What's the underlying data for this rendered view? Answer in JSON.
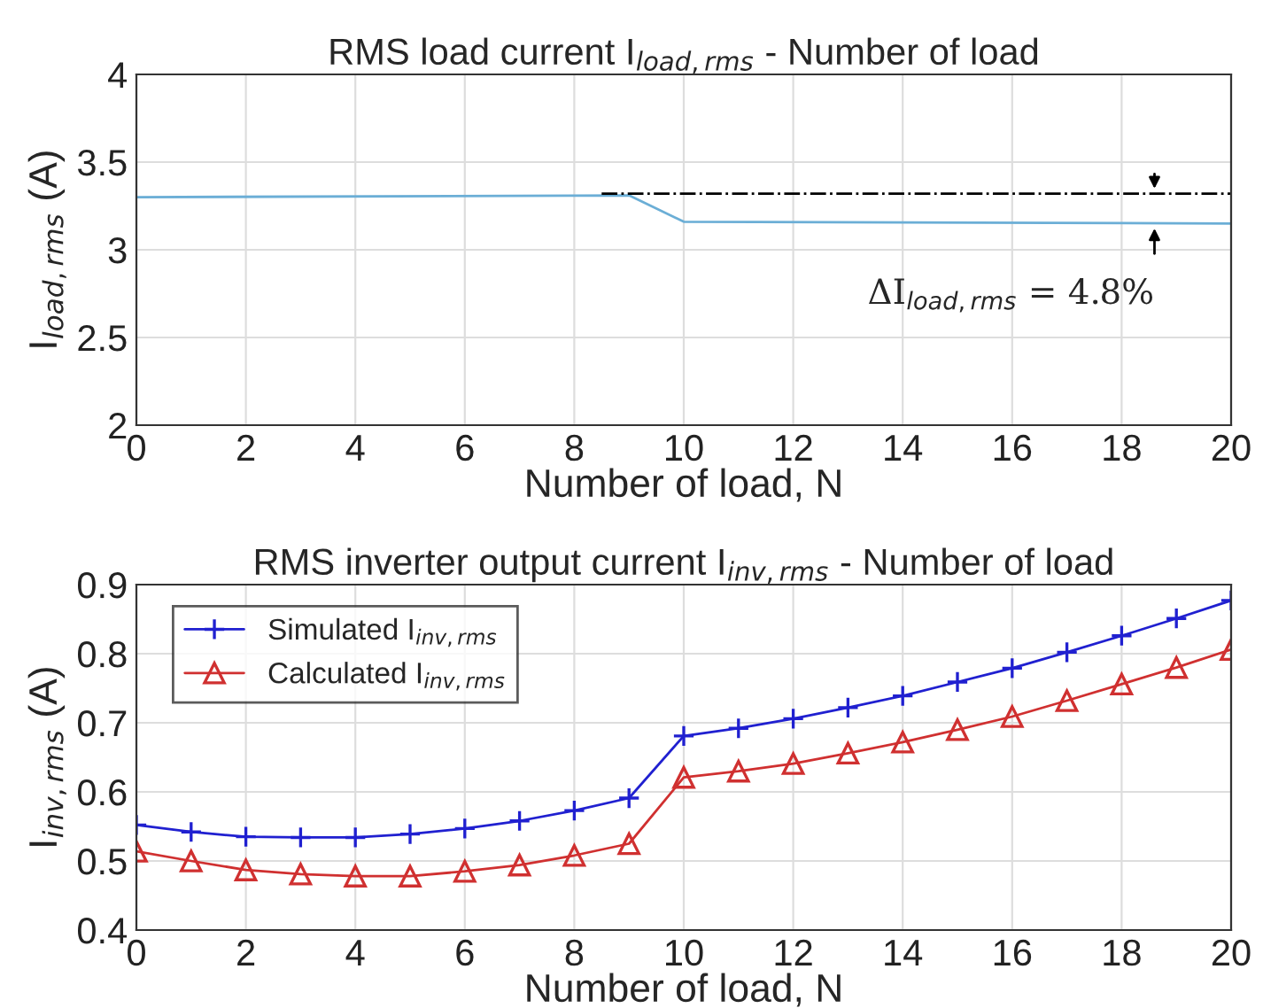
{
  "chart_data": [
    {
      "type": "line",
      "title": "RMS load current I$_{load,rms}$ - Number of load",
      "xlabel": "Number of load, N",
      "ylabel": "I$_{load,rms}$ (A)",
      "series": [
        {
          "color": "#6baed6",
          "x": [
            0,
            9,
            10,
            20
          ],
          "values": [
            3.3,
            3.31,
            3.16,
            3.15
          ],
          "line_style": "solid"
        },
        {
          "color": "#000000",
          "x": [
            8.5,
            20
          ],
          "values": [
            3.32,
            3.32
          ],
          "line_style": "dashed"
        }
      ],
      "annotations": [
        "ΔI$_{load,rms}$ = 4.8%"
      ],
      "xlim": [
        0,
        20
      ],
      "xticks": [
        0,
        2,
        4,
        6,
        8,
        10,
        12,
        14,
        16,
        18,
        20
      ],
      "ylim": [
        2,
        4
      ],
      "yticks": [
        2,
        2.5,
        3,
        3.5,
        4
      ],
      "grid": true,
      "legend": false,
      "marker": "none"
    },
    {
      "type": "line",
      "title": "RMS inverter output current I$_{inv,rms}$ - Number of load",
      "xlabel": "Number of load, N",
      "ylabel": "I$_{inv,rms}$ (A)",
      "x": [
        0,
        1,
        2,
        3,
        4,
        5,
        6,
        7,
        8,
        9,
        10,
        11,
        12,
        13,
        14,
        15,
        16,
        17,
        18,
        19,
        20
      ],
      "series": [
        {
          "name": "Simulated I$_{inv,rms}$",
          "color": "#2020d0",
          "marker": "cross",
          "values": [
            0.552,
            0.542,
            0.535,
            0.534,
            0.534,
            0.539,
            0.547,
            0.558,
            0.573,
            0.591,
            0.681,
            0.692,
            0.706,
            0.722,
            0.739,
            0.759,
            0.779,
            0.802,
            0.826,
            0.851,
            0.877
          ]
        },
        {
          "name": "Calculated I$_{inv,rms}$",
          "color": "#d03030",
          "marker": "triangle",
          "values": [
            0.514,
            0.5,
            0.487,
            0.481,
            0.478,
            0.478,
            0.485,
            0.494,
            0.508,
            0.525,
            0.621,
            0.63,
            0.641,
            0.656,
            0.672,
            0.69,
            0.709,
            0.732,
            0.756,
            0.78,
            0.806
          ]
        }
      ],
      "xlim": [
        0,
        20
      ],
      "xticks": [
        0,
        2,
        4,
        6,
        8,
        10,
        12,
        14,
        16,
        18,
        20
      ],
      "ylim": [
        0.4,
        0.9
      ],
      "yticks": [
        0.4,
        0.5,
        0.6,
        0.7,
        0.8,
        0.9
      ],
      "grid": true,
      "legend": "top left"
    }
  ]
}
